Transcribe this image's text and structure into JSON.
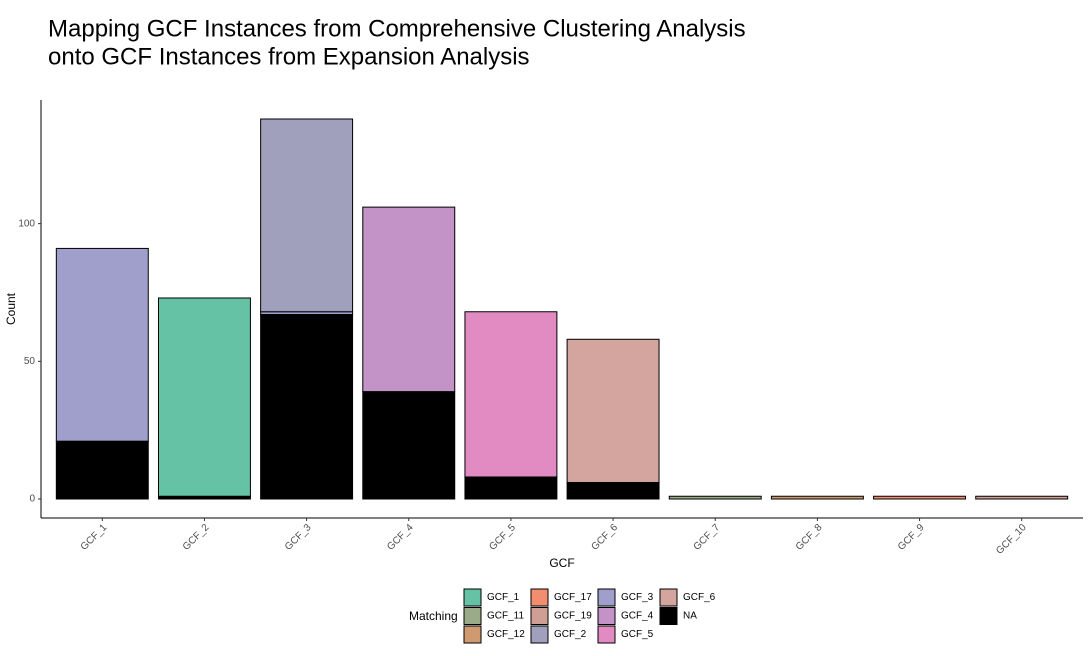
{
  "chart_data": {
    "type": "bar",
    "stacked": true,
    "title": [
      "Mapping GCF Instances from Comprehensive Clustering Analysis",
      "onto GCF Instances from Expansion Analysis"
    ],
    "x_label": "GCF",
    "y_label": "Count",
    "legend_title": "Matching",
    "categories": [
      "GCF_1",
      "GCF_2",
      "GCF_3",
      "GCF_4",
      "GCF_5",
      "GCF_6",
      "GCF_7",
      "GCF_8",
      "GCF_9",
      "GCF_10"
    ],
    "series": [
      {
        "name": "GCF_1",
        "color": "#66c2a5",
        "values": [
          null,
          72,
          null,
          null,
          null,
          null,
          null,
          null,
          null,
          null
        ]
      },
      {
        "name": "GCF_11",
        "color": "#9aab8a",
        "values": [
          null,
          null,
          null,
          null,
          null,
          null,
          1,
          null,
          null,
          null
        ]
      },
      {
        "name": "GCF_12",
        "color": "#d09a70",
        "values": [
          null,
          null,
          null,
          null,
          null,
          null,
          null,
          1,
          null,
          null
        ]
      },
      {
        "name": "GCF_17",
        "color": "#f28e6f",
        "values": [
          null,
          null,
          null,
          null,
          null,
          null,
          null,
          null,
          1,
          null
        ]
      },
      {
        "name": "GCF_19",
        "color": "#cf9f96",
        "values": [
          null,
          null,
          null,
          null,
          null,
          null,
          null,
          null,
          null,
          1
        ]
      },
      {
        "name": "GCF_2",
        "color": "#a0a0bc",
        "values": [
          null,
          null,
          70,
          null,
          null,
          null,
          null,
          null,
          null,
          null
        ]
      },
      {
        "name": "GCF_3",
        "color": "#a09fcb",
        "values": [
          70,
          null,
          1,
          null,
          null,
          null,
          null,
          null,
          null,
          null
        ]
      },
      {
        "name": "GCF_4",
        "color": "#c393c8",
        "values": [
          null,
          null,
          null,
          67,
          null,
          null,
          null,
          null,
          null,
          null
        ]
      },
      {
        "name": "GCF_5",
        "color": "#e28bc3",
        "values": [
          null,
          null,
          null,
          null,
          60,
          null,
          null,
          null,
          null,
          null
        ]
      },
      {
        "name": "GCF_6",
        "color": "#d4a59e",
        "values": [
          null,
          null,
          null,
          null,
          null,
          52,
          null,
          null,
          null,
          null
        ]
      },
      {
        "name": "NA",
        "color": "#000000",
        "values": [
          21,
          1,
          67,
          39,
          8,
          6,
          null,
          null,
          null,
          null
        ]
      }
    ],
    "ylim": [
      -6.9,
      144.9
    ],
    "yticks": [
      0,
      50,
      100
    ],
    "grid": false,
    "legend_position": "bottom"
  }
}
